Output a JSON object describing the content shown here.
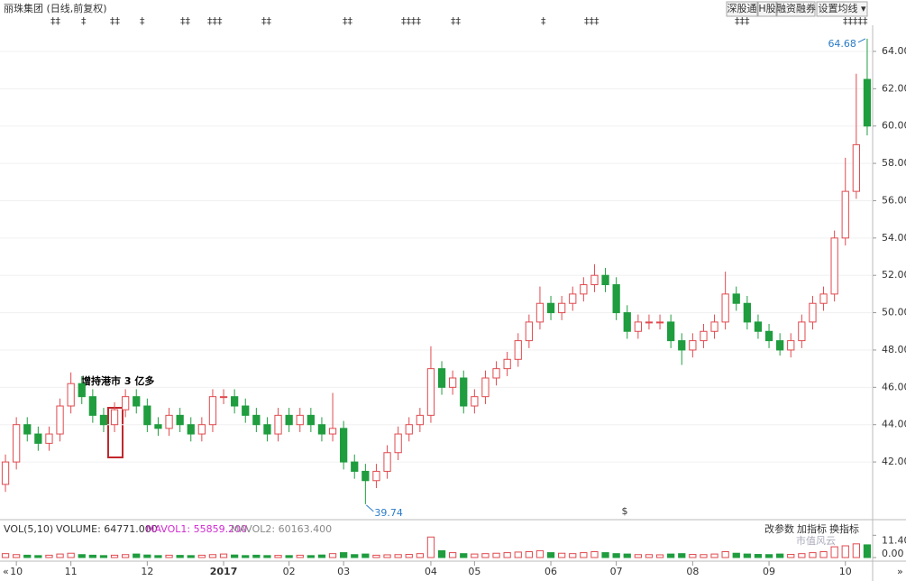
{
  "toolbar": {
    "title": "丽珠集团 (日线,前复权)",
    "buttons": [
      "深股通",
      "H股",
      "融资融券",
      "设置均线 ▾"
    ]
  },
  "indicator_buttons": [
    "改参数",
    "加指标",
    "换指标"
  ],
  "watermark": "市值风云",
  "chart_data": {
    "type": "candlestick",
    "annotation": "增持港市 3 亿多",
    "up_color": "#e04a4f",
    "down_color": "#1f9d3f",
    "open": [
      40.8,
      42.0,
      44.0,
      43.5,
      43.0,
      43.5,
      45.0,
      46.2,
      45.5,
      44.5,
      44.0,
      44.8,
      45.5,
      45.0,
      44.0,
      43.8,
      44.5,
      44.0,
      43.5,
      44.0,
      45.5,
      45.5,
      45.0,
      44.5,
      44.0,
      43.5,
      44.5,
      44.0,
      44.5,
      44.0,
      43.5,
      43.8,
      42.0,
      41.5,
      41.0,
      41.5,
      42.5,
      43.5,
      44.0,
      44.5,
      47.0,
      46.0,
      46.5,
      45.0,
      45.5,
      46.5,
      47.0,
      47.5,
      48.5,
      49.5,
      50.5,
      50.0,
      50.5,
      51.0,
      51.5,
      52.0,
      51.5,
      50.0,
      49.0,
      49.5,
      49.5,
      49.5,
      48.5,
      48.0,
      48.5,
      49.0,
      49.5,
      51.0,
      50.5,
      49.5,
      49.0,
      48.5,
      48.0,
      48.5,
      49.5,
      50.5,
      51.0,
      54.0,
      56.5,
      62.5
    ],
    "high": [
      42.4,
      44.4,
      44.4,
      43.9,
      43.9,
      45.4,
      46.8,
      46.6,
      45.9,
      44.9,
      45.2,
      45.9,
      45.9,
      45.4,
      44.4,
      44.9,
      44.9,
      44.4,
      44.4,
      45.9,
      45.9,
      45.9,
      45.4,
      44.9,
      44.4,
      44.9,
      44.9,
      44.9,
      44.9,
      44.4,
      45.7,
      44.2,
      42.4,
      41.9,
      41.9,
      42.9,
      43.9,
      44.4,
      44.9,
      48.2,
      47.4,
      46.9,
      46.9,
      45.9,
      46.9,
      47.4,
      47.9,
      48.9,
      49.9,
      51.4,
      50.9,
      50.9,
      51.4,
      51.9,
      52.6,
      52.4,
      51.9,
      50.4,
      49.9,
      49.9,
      49.9,
      49.9,
      48.9,
      48.9,
      49.4,
      49.9,
      52.2,
      51.4,
      50.9,
      49.9,
      49.4,
      48.9,
      48.9,
      49.9,
      50.9,
      51.4,
      54.4,
      58.3,
      62.8,
      64.68
    ],
    "low": [
      40.4,
      41.6,
      43.1,
      42.6,
      42.6,
      43.1,
      44.6,
      45.1,
      44.1,
      43.6,
      43.6,
      44.4,
      44.6,
      43.6,
      43.4,
      43.4,
      43.6,
      43.1,
      43.1,
      43.6,
      45.1,
      44.6,
      44.1,
      43.6,
      43.1,
      43.1,
      43.6,
      43.6,
      43.6,
      43.1,
      43.1,
      41.6,
      41.1,
      39.74,
      40.6,
      41.1,
      42.1,
      43.1,
      43.6,
      44.1,
      45.6,
      45.6,
      44.6,
      44.6,
      45.1,
      46.1,
      46.6,
      47.1,
      48.1,
      49.1,
      49.6,
      49.6,
      50.1,
      50.6,
      51.1,
      51.1,
      49.6,
      48.6,
      48.6,
      49.1,
      49.1,
      48.1,
      47.2,
      47.6,
      48.1,
      48.6,
      49.1,
      50.1,
      49.1,
      48.6,
      48.1,
      47.7,
      47.6,
      48.1,
      49.1,
      50.1,
      50.6,
      53.6,
      56.1,
      59.5
    ],
    "close": [
      42.0,
      44.0,
      43.5,
      43.0,
      43.5,
      45.0,
      46.2,
      45.5,
      44.5,
      44.0,
      44.8,
      45.5,
      45.0,
      44.0,
      43.8,
      44.5,
      44.0,
      43.5,
      44.0,
      45.5,
      45.5,
      45.0,
      44.5,
      44.0,
      43.5,
      44.5,
      44.0,
      44.5,
      44.0,
      43.5,
      43.8,
      42.0,
      41.5,
      41.0,
      41.5,
      42.5,
      43.5,
      44.0,
      44.5,
      47.0,
      46.0,
      46.5,
      45.0,
      45.5,
      46.5,
      47.0,
      47.5,
      48.5,
      49.5,
      50.5,
      50.0,
      50.5,
      51.0,
      51.5,
      52.0,
      51.5,
      50.0,
      49.0,
      49.5,
      49.5,
      49.5,
      48.5,
      48.0,
      48.5,
      49.0,
      49.5,
      51.0,
      50.5,
      49.5,
      49.0,
      48.5,
      48.0,
      48.5,
      49.5,
      50.5,
      51.0,
      54.0,
      56.5,
      59.0,
      60.0
    ],
    "ylim": [
      39.2,
      65.4
    ],
    "yticks": [
      {
        "value": 42,
        "label": "42.00"
      },
      {
        "value": 44,
        "label": "44.00"
      },
      {
        "value": 46,
        "label": "46.00"
      },
      {
        "value": 48,
        "label": "48.00"
      },
      {
        "value": 50,
        "label": "50.00"
      },
      {
        "value": 52,
        "label": "52.00"
      },
      {
        "value": 54,
        "label": "54.00"
      },
      {
        "value": 56,
        "label": "56.00"
      },
      {
        "value": 58,
        "label": "58.00"
      },
      {
        "value": 60,
        "label": "60.00"
      },
      {
        "value": 62,
        "label": "62.00"
      },
      {
        "value": 64,
        "label": "64.00"
      }
    ],
    "xticks": [
      {
        "value": 1,
        "label": "10"
      },
      {
        "value": 6,
        "label": "11"
      },
      {
        "value": 13,
        "label": "12"
      },
      {
        "value": 20,
        "label": "2017"
      },
      {
        "value": 26,
        "label": "02"
      },
      {
        "value": 31,
        "label": "03"
      },
      {
        "value": 39,
        "label": "04"
      },
      {
        "value": 43,
        "label": "05"
      },
      {
        "value": 50,
        "label": "06"
      },
      {
        "value": 56,
        "label": "07"
      },
      {
        "value": 63,
        "label": "08"
      },
      {
        "value": 70,
        "label": "09"
      },
      {
        "value": 77,
        "label": "10"
      }
    ],
    "volume": {
      "title": "VOL(5,10)",
      "legend": [
        "VOLUME: 64771.000",
        "MAVOL1: 55859.200",
        "MAVOL2: 60163.400"
      ],
      "values": [
        2.0,
        1.5,
        1.2,
        1.0,
        1.2,
        1.8,
        2.2,
        1.5,
        1.2,
        1.0,
        1.2,
        1.5,
        1.8,
        1.3,
        1.0,
        1.2,
        1.1,
        1.0,
        1.2,
        1.5,
        1.8,
        1.3,
        1.0,
        1.2,
        1.0,
        1.1,
        1.0,
        1.2,
        1.0,
        1.3,
        2.0,
        2.5,
        1.5,
        1.8,
        1.2,
        1.4,
        1.5,
        1.6,
        2.0,
        10.5,
        3.5,
        2.5,
        2.0,
        1.8,
        2.0,
        2.2,
        2.5,
        2.8,
        3.0,
        3.5,
        2.5,
        2.2,
        2.0,
        2.5,
        3.0,
        2.5,
        2.0,
        1.8,
        1.5,
        1.5,
        1.4,
        1.8,
        2.0,
        1.6,
        1.5,
        1.8,
        3.0,
        2.2,
        1.8,
        1.6,
        1.5,
        1.8,
        1.6,
        2.0,
        2.5,
        3.0,
        5.5,
        6.0,
        7.0,
        6.5
      ],
      "ylim": [
        0,
        12
      ],
      "yticks": [
        {
          "value": 11.4,
          "label": "11.40"
        },
        {
          "value": 0,
          "label": "0.00"
        }
      ]
    }
  }
}
